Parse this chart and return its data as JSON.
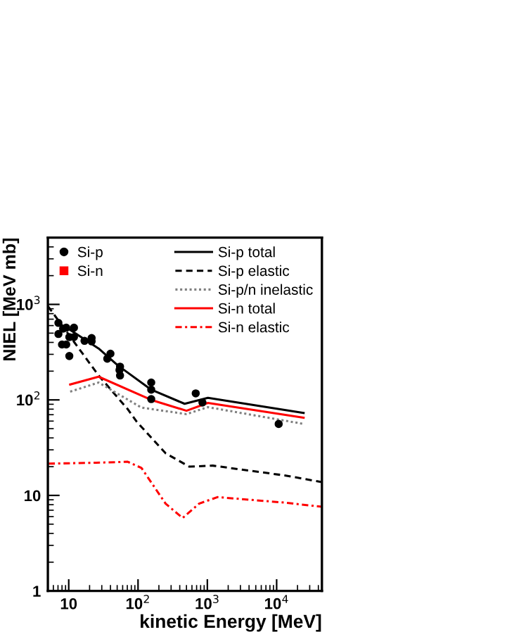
{
  "chart_data": {
    "type": "line",
    "xlabel": "kinetic Energy [MeV]",
    "ylabel": "NIEL [MeV mb]",
    "log": "xy",
    "xlim": [
      5,
      45000
    ],
    "ylim": [
      1,
      5000
    ],
    "xticks": [
      10,
      {
        "value": 100,
        "label": "10$^{2}$"
      },
      {
        "value": 1000,
        "label": "10$^{3}$"
      },
      {
        "value": 10000,
        "label": "10$^{4}$"
      }
    ],
    "yticks": [
      1,
      10,
      {
        "value": 100,
        "label": "10$^{2}$"
      },
      {
        "value": 1000,
        "label": "10$^{3}$"
      }
    ],
    "grid": false,
    "legend": "top",
    "series": [
      {
        "name": "Si-p",
        "type": "scatter",
        "marker": "circle",
        "color": "#000000",
        "x": [
          7.1,
          7.1,
          8.3,
          9.2,
          8.0,
          9.2,
          10.2,
          10.2,
          11.9,
          11.9,
          16.9,
          21.4,
          21.4,
          36,
          40,
          55,
          55,
          54,
          155,
          155,
          155,
          680,
          850,
          10700
        ],
        "values": [
          640,
          490,
          557,
          570,
          380,
          380,
          288,
          455,
          570,
          455,
          415,
          410,
          445,
          270,
          305,
          223,
          180,
          205,
          152,
          128,
          102,
          117,
          94,
          56
        ]
      },
      {
        "name": "Si-n",
        "type": "scatter",
        "marker": "square",
        "color": "#ff0000"
      },
      {
        "name": "Si-p total",
        "line_style": "solid",
        "color": "#000000",
        "x": [
          10.5,
          27,
          51,
          155,
          470,
          1020,
          24500
        ],
        "values": [
          540,
          345,
          230,
          128,
          91,
          105,
          73
        ]
      },
      {
        "name": "Si-p elastic",
        "line_style": "dashed",
        "color": "#000000",
        "x": [
          5,
          27,
          71,
          96,
          250,
          550,
          1200,
          13000,
          45000
        ],
        "values": [
          960,
          180,
          80,
          59,
          27.6,
          20,
          20.5,
          16.2,
          13.8
        ]
      },
      {
        "name": "Si-p/n inelastic",
        "line_style": "dotted",
        "color": "#808080",
        "x": [
          10.5,
          27,
          112,
          500,
          1020,
          24500
        ],
        "values": [
          122,
          152,
          83,
          71,
          84,
          56
        ]
      },
      {
        "name": "Si-n total",
        "line_style": "solid",
        "color": "#ff0000",
        "x": [
          10.5,
          27,
          155,
          500,
          1020,
          24500
        ],
        "values": [
          145,
          175,
          100,
          77,
          93,
          65
        ]
      },
      {
        "name": "Si-n elastic",
        "line_style": "dashdot",
        "color": "#ff0000",
        "x": [
          5.1,
          25,
          71,
          112,
          250,
          440,
          760,
          1400,
          13000,
          45000
        ],
        "values": [
          21.5,
          22,
          22.5,
          19.4,
          8.2,
          5.8,
          8.2,
          9.6,
          8.4,
          7.6
        ]
      }
    ]
  }
}
